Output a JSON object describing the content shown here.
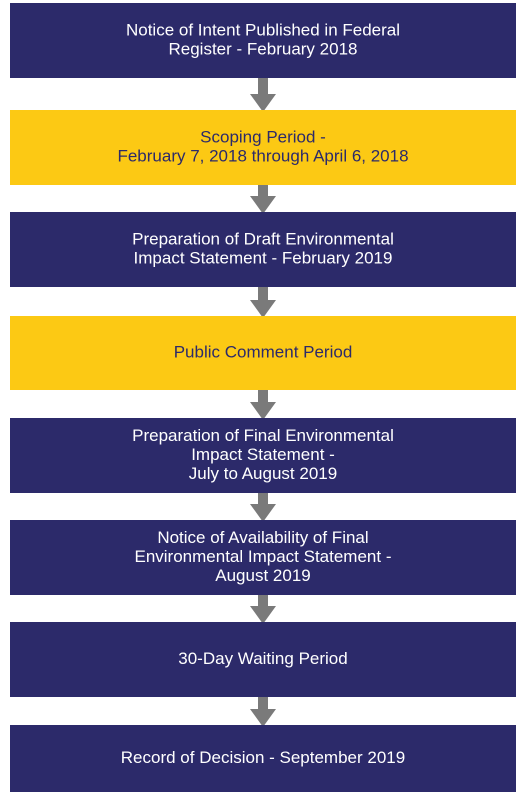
{
  "nodes": [
    {
      "lines": [
        "Notice of Intent Published in Federal",
        "Register - February 2018"
      ],
      "color": "#2c2a6a",
      "text_color": "#ffffff"
    },
    {
      "lines": [
        "Scoping Period -",
        "February 7, 2018 through April 6, 2018"
      ],
      "color": "#fcc914",
      "text_color": "#2c2a6a"
    },
    {
      "lines": [
        "Preparation of Draft Environmental",
        "Impact Statement - February 2019"
      ],
      "color": "#2c2a6a",
      "text_color": "#ffffff"
    },
    {
      "lines": [
        "Public Comment Period"
      ],
      "color": "#fcc914",
      "text_color": "#2c2a6a"
    },
    {
      "lines": [
        "Preparation of Final Environmental",
        "Impact Statement -",
        "July to August 2019"
      ],
      "color": "#2c2a6a",
      "text_color": "#ffffff"
    },
    {
      "lines": [
        "Notice of Availability of Final",
        "Environmental Impact Statement -",
        "August 2019"
      ],
      "color": "#2c2a6a",
      "text_color": "#ffffff"
    },
    {
      "lines": [
        "30-Day Waiting Period"
      ],
      "color": "#2c2a6a",
      "text_color": "#ffffff"
    },
    {
      "lines": [
        "Record of Decision - September 2019"
      ],
      "color": "#2c2a6a",
      "text_color": "#ffffff"
    }
  ]
}
